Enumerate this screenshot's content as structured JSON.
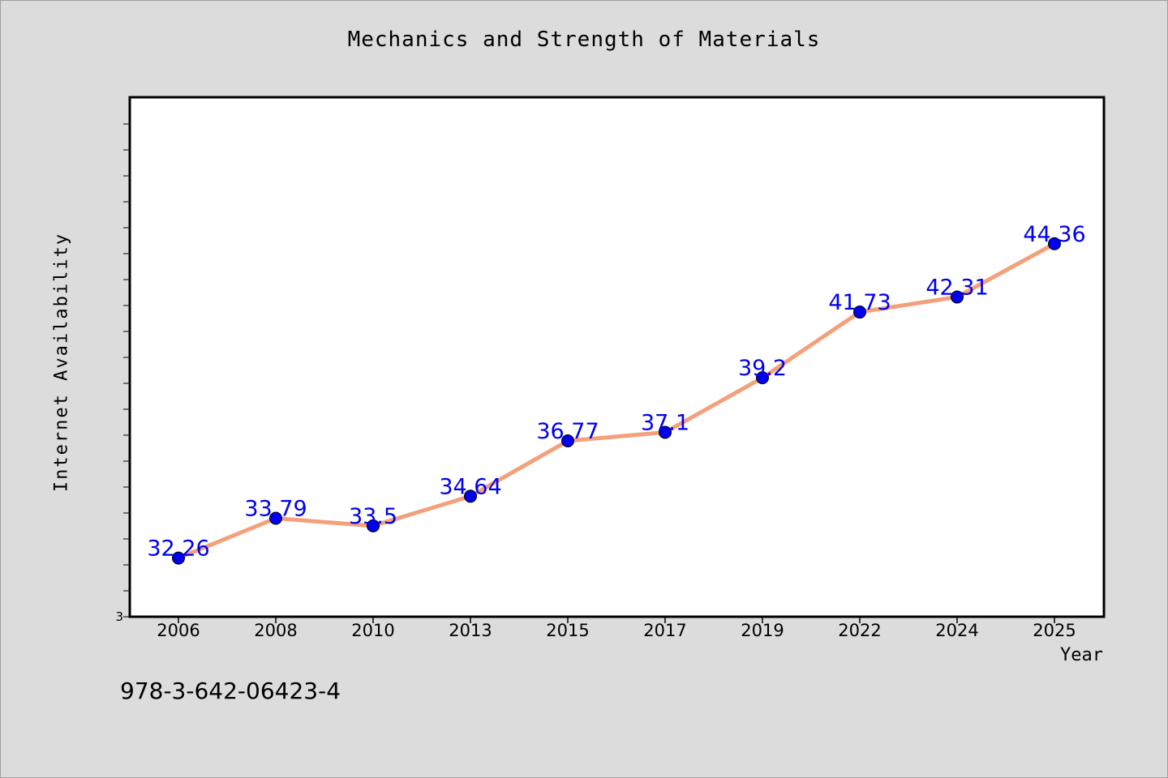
{
  "chart_data": {
    "type": "line",
    "title": "Mechanics and Strength of Materials",
    "xlabel": "Year",
    "ylabel": "Internet Availability",
    "ytick_labels": [
      "3"
    ],
    "categories": [
      "2006",
      "2008",
      "2010",
      "2013",
      "2015",
      "2017",
      "2019",
      "2022",
      "2024",
      "2025"
    ],
    "series": [
      {
        "values": [
          32.26,
          33.79,
          33.5,
          34.64,
          36.77,
          37.1,
          39.2,
          41.73,
          42.31,
          44.36
        ],
        "data_labels": [
          "32.26",
          "33.79",
          "33.5",
          "34.64",
          "36.77",
          "37.1",
          "39.2",
          "41.73",
          "42.31",
          "44.36"
        ]
      }
    ],
    "ylim": [
      30,
      50
    ],
    "grid": false,
    "colors": {
      "line": "#f4a07a",
      "marker": "#0000ee",
      "labels": "#0000ee"
    }
  },
  "footer_text": "978-3-642-06423-4"
}
